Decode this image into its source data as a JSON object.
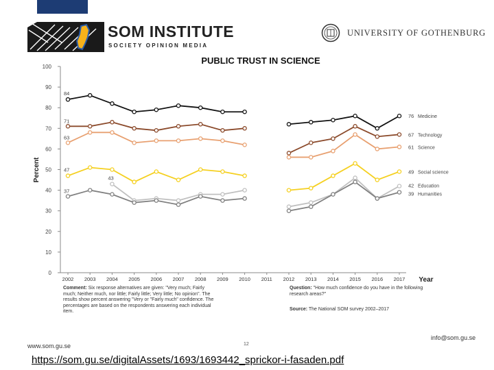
{
  "header": {
    "som_title": "SOM INSTITUTE",
    "som_subtitle": "SOCIETY   OPINION   MEDIA",
    "university": "UNIVERSITY OF GOTHENBURG",
    "topbar_color": "#1d3c74"
  },
  "chart_data": {
    "type": "line",
    "title": "PUBLIC TRUST IN SCIENCE",
    "xlabel": "Year",
    "ylabel": "Percent",
    "ylim": [
      0,
      100
    ],
    "yticks": [
      "0",
      "10",
      "20",
      "30",
      "40",
      "50",
      "60",
      "70",
      "80",
      "90",
      "100"
    ],
    "x": [
      "2002",
      "2003",
      "2004",
      "2005",
      "2006",
      "2007",
      "2008",
      "2009",
      "2010",
      "2011",
      "2012",
      "2013",
      "2014",
      "2015",
      "2016",
      "2017"
    ],
    "grid": false,
    "series": [
      {
        "name": "Medicine",
        "color": "#111111",
        "values": [
          84,
          86,
          82,
          78,
          79,
          81,
          80,
          78,
          78,
          null,
          72,
          73,
          74,
          76,
          70,
          76
        ],
        "start_label": "84",
        "end_label": "76"
      },
      {
        "name": "Technology",
        "color": "#8b4a2b",
        "values": [
          71,
          71,
          73,
          70,
          69,
          71,
          72,
          69,
          70,
          null,
          58,
          63,
          65,
          71,
          66,
          67
        ],
        "start_label": "71",
        "end_label": "67"
      },
      {
        "name": "Science",
        "color": "#e8a070",
        "values": [
          63,
          68,
          68,
          63,
          64,
          64,
          65,
          64,
          62,
          null,
          56,
          56,
          59,
          67,
          60,
          61
        ],
        "start_label": "63",
        "end_label": "61"
      },
      {
        "name": "Social science",
        "color": "#f5d020",
        "values": [
          47,
          51,
          50,
          44,
          49,
          45,
          50,
          49,
          47,
          null,
          40,
          41,
          47,
          53,
          45,
          49
        ],
        "start_label": "47",
        "end_label": "49"
      },
      {
        "name": "Education",
        "color": "#c0c0c0",
        "values": [
          null,
          null,
          43,
          35,
          36,
          35,
          38,
          38,
          40,
          null,
          32,
          34,
          38,
          46,
          36,
          42
        ],
        "start_label": "43",
        "end_label": "42"
      },
      {
        "name": "Humanities",
        "color": "#808080",
        "values": [
          37,
          40,
          38,
          34,
          35,
          33,
          37,
          35,
          36,
          null,
          30,
          32,
          38,
          44,
          36,
          39
        ],
        "start_label": "37",
        "end_label": "39"
      }
    ]
  },
  "notes": {
    "comment_label": "Comment:",
    "comment_text": "Six response alternatives are given: \"Very much; Fairly much; Neither much, nor little; Fairly little; Very little; No opinion\". The results show percent answering \"Very or \"Fairly much\" confidence. The percentages are based on the respondents answering each individual item.",
    "question_label": "Question:",
    "question_text": "\"How much confidence do you have in the following research areas?\"",
    "source_label": "Source:",
    "source_text": "The National SOM survey 2002–2017"
  },
  "footer": {
    "website": "www.som.gu.se",
    "page_number": "12",
    "email": "info@som.gu.se",
    "link": "https://som.gu.se/digitalAssets/1693/1693442_sprickor-i-fasaden.pdf"
  }
}
